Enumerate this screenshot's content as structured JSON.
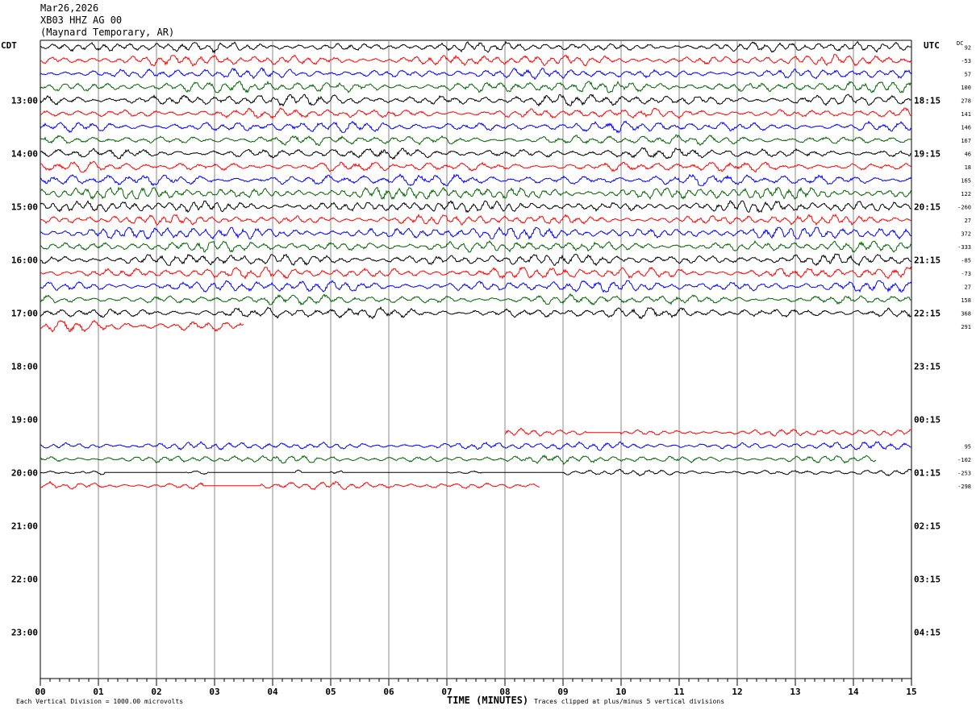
{
  "header": {
    "date": "Mar26,2026",
    "channel": "XB03 HHZ AG 00",
    "station": "(Maynard Temporary, AR)"
  },
  "axes": {
    "left_tz": "CDT",
    "right_tz": "UTC",
    "dc_label": "DC",
    "xlabel": "TIME (MINUTES)",
    "scale_note": "Each Vertical Division = 1000.00 microvolts",
    "clip_note": "Traces clipped at plus/minus 5 vertical divisions"
  },
  "chart_data": {
    "type": "line",
    "title": "",
    "xlabel": "TIME (MINUTES)",
    "x_ticks": [
      "00",
      "01",
      "02",
      "03",
      "04",
      "05",
      "06",
      "07",
      "08",
      "09",
      "10",
      "11",
      "12",
      "13",
      "14",
      "15"
    ],
    "xlim": [
      0,
      15
    ],
    "row_minutes": 15,
    "trace_colors": [
      "#000000",
      "#ff0000",
      "#0000ff",
      "#006600"
    ],
    "left_hour_labels": [
      "13:00",
      "14:00",
      "15:00",
      "16:00",
      "17:00",
      "18:00",
      "19:00",
      "20:00",
      "21:00",
      "22:00",
      "23:00"
    ],
    "right_hour_labels": [
      "18:15",
      "19:15",
      "20:15",
      "21:15",
      "22:15",
      "23:15",
      "00:15",
      "01:15",
      "02:15",
      "03:15",
      "04:15"
    ],
    "rows": [
      {
        "start": 0,
        "end": 15,
        "dc": "92",
        "amp": 1.0
      },
      {
        "start": 0,
        "end": 15,
        "dc": "-53",
        "amp": 1.1
      },
      {
        "start": 0,
        "end": 15,
        "dc": "57",
        "amp": 1.0
      },
      {
        "start": 0,
        "end": 15,
        "dc": "100",
        "amp": 1.2
      },
      {
        "start": 0,
        "end": 15,
        "dc": "278",
        "amp": 1.2
      },
      {
        "start": 0,
        "end": 15,
        "dc": "141",
        "amp": 1.0
      },
      {
        "start": 0,
        "end": 15,
        "dc": "146",
        "amp": 1.1
      },
      {
        "start": 0,
        "end": 15,
        "dc": "167",
        "amp": 1.0
      },
      {
        "start": 0,
        "end": 15,
        "dc": "46",
        "amp": 1.1
      },
      {
        "start": 0,
        "end": 15,
        "dc": "18",
        "amp": 1.0
      },
      {
        "start": 0,
        "end": 15,
        "dc": "165",
        "amp": 1.2
      },
      {
        "start": 0,
        "end": 15,
        "dc": "122",
        "amp": 1.3
      },
      {
        "start": 0,
        "end": 15,
        "dc": "-260",
        "amp": 1.2
      },
      {
        "start": 0,
        "end": 15,
        "dc": "27",
        "amp": 1.0
      },
      {
        "start": 0,
        "end": 15,
        "dc": "372",
        "amp": 1.3
      },
      {
        "start": 0,
        "end": 15,
        "dc": "-333",
        "amp": 1.1
      },
      {
        "start": 0,
        "end": 15,
        "dc": "-85",
        "amp": 1.2
      },
      {
        "start": 0,
        "end": 15,
        "dc": "-73",
        "amp": 1.2
      },
      {
        "start": 0,
        "end": 15,
        "dc": "27",
        "amp": 1.2
      },
      {
        "start": 0,
        "end": 15,
        "dc": "158",
        "amp": 1.0
      },
      {
        "start": 0,
        "end": 15,
        "dc": "368",
        "amp": 1.1
      },
      {
        "start": 0,
        "end": 3.5,
        "dc": "291",
        "amp": 1.3
      },
      {
        "start": null,
        "end": null,
        "dc": "",
        "amp": 0
      },
      {
        "start": null,
        "end": null,
        "dc": "",
        "amp": 0
      },
      {
        "start": null,
        "end": null,
        "dc": "",
        "amp": 0
      },
      {
        "start": null,
        "end": null,
        "dc": "",
        "amp": 0
      },
      {
        "start": null,
        "end": null,
        "dc": "",
        "amp": 0
      },
      {
        "start": null,
        "end": null,
        "dc": "",
        "amp": 0
      },
      {
        "start": null,
        "end": null,
        "dc": "",
        "amp": 0
      },
      {
        "start": 8,
        "end": 15,
        "dc": "",
        "amp": 0.7,
        "gaps": [
          [
            9.4,
            10.0
          ]
        ]
      },
      {
        "start": 0,
        "end": 15,
        "dc": "95",
        "amp": 0.8
      },
      {
        "start": 0,
        "end": 14.4,
        "dc": "-102",
        "amp": 0.8
      },
      {
        "start": 0,
        "end": 15,
        "dc": "-253",
        "amp": 0.6,
        "gaps": [
          [
            0.6,
            0.7
          ],
          [
            1.1,
            2.5
          ],
          [
            2.9,
            4.4
          ],
          [
            4.5,
            5.0
          ],
          [
            5.2,
            7.0
          ],
          [
            7.6,
            9.0
          ]
        ]
      },
      {
        "start": 0,
        "end": 8.6,
        "dc": "-298",
        "amp": 0.8,
        "gaps": [
          [
            2.8,
            3.8
          ]
        ]
      },
      {
        "start": null,
        "end": null,
        "dc": "",
        "amp": 0
      },
      {
        "start": null,
        "end": null,
        "dc": "",
        "amp": 0
      },
      {
        "start": null,
        "end": null,
        "dc": "",
        "amp": 0
      },
      {
        "start": null,
        "end": null,
        "dc": "",
        "amp": 0
      },
      {
        "start": null,
        "end": null,
        "dc": "",
        "amp": 0
      },
      {
        "start": null,
        "end": null,
        "dc": "",
        "amp": 0
      },
      {
        "start": null,
        "end": null,
        "dc": "",
        "amp": 0
      },
      {
        "start": null,
        "end": null,
        "dc": "",
        "amp": 0
      },
      {
        "start": null,
        "end": null,
        "dc": "",
        "amp": 0
      },
      {
        "start": null,
        "end": null,
        "dc": "",
        "amp": 0
      },
      {
        "start": null,
        "end": null,
        "dc": "",
        "amp": 0
      },
      {
        "start": null,
        "end": null,
        "dc": "",
        "amp": 0
      },
      {
        "start": null,
        "end": null,
        "dc": "",
        "amp": 0
      },
      {
        "start": null,
        "end": null,
        "dc": "",
        "amp": 0
      }
    ]
  }
}
